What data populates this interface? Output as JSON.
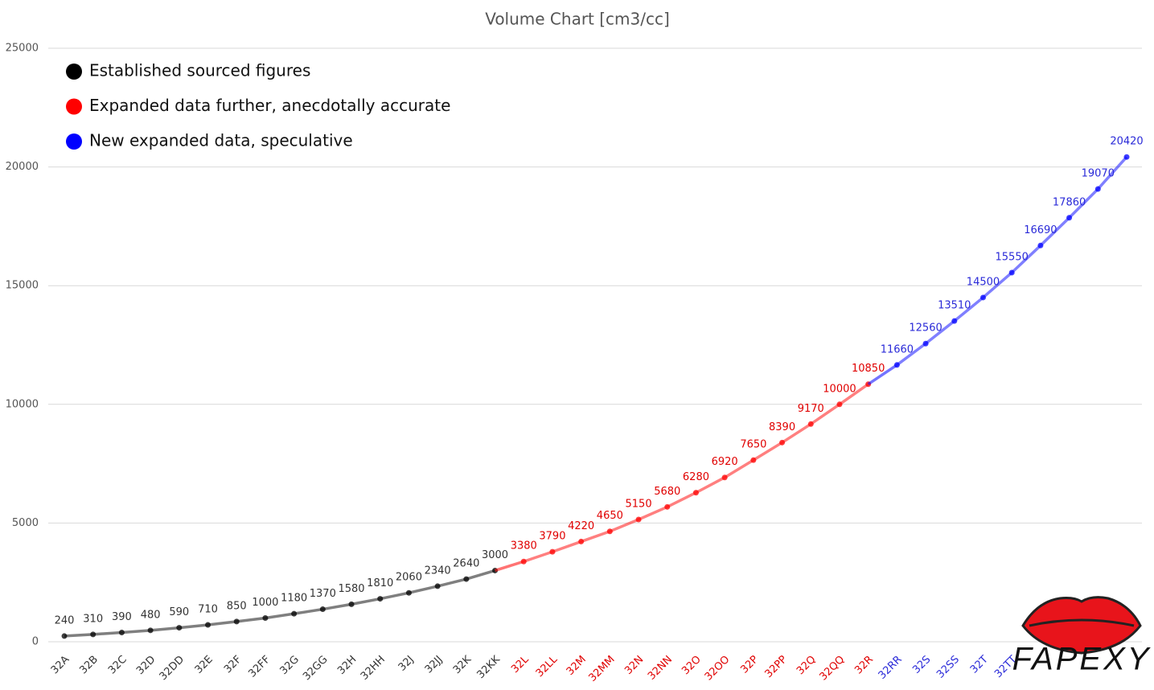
{
  "chart_data": {
    "type": "line",
    "title": "Volume Chart [cm3/cc]",
    "categories": [
      "32A",
      "32B",
      "32C",
      "32D",
      "32DD",
      "32E",
      "32F",
      "32FF",
      "32G",
      "32GG",
      "32H",
      "32HH",
      "32J",
      "32JJ",
      "32K",
      "32KK",
      "32L",
      "32LL",
      "32M",
      "32MM",
      "32N",
      "32NN",
      "32O",
      "32OO",
      "32P",
      "32PP",
      "32Q",
      "32QQ",
      "32R",
      "32RR",
      "32S",
      "32SS",
      "32T",
      "32TT",
      null,
      null,
      null,
      null
    ],
    "series": [
      {
        "name": "Established sourced figures",
        "color": "#000000",
        "values": [
          240,
          310,
          390,
          480,
          590,
          710,
          850,
          1000,
          1180,
          1370,
          1580,
          1810,
          2060,
          2340,
          2640,
          3000,
          null,
          null,
          null,
          null,
          null,
          null,
          null,
          null,
          null,
          null,
          null,
          null,
          null,
          null,
          null,
          null,
          null,
          null,
          null,
          null,
          null,
          null
        ]
      },
      {
        "name": "Expanded data further, anecdotally accurate",
        "color": "#ff0000",
        "values": [
          null,
          null,
          null,
          null,
          null,
          null,
          null,
          null,
          null,
          null,
          null,
          null,
          null,
          null,
          null,
          null,
          3380,
          3790,
          4220,
          4650,
          5150,
          5680,
          6280,
          6920,
          7650,
          8390,
          9170,
          10000,
          10850,
          null,
          null,
          null,
          null,
          null,
          null,
          null,
          null,
          null
        ]
      },
      {
        "name": "New expanded data, speculative",
        "color": "#0000ff",
        "values": [
          null,
          null,
          null,
          null,
          null,
          null,
          null,
          null,
          null,
          null,
          null,
          null,
          null,
          null,
          null,
          null,
          null,
          null,
          null,
          null,
          null,
          null,
          null,
          null,
          null,
          null,
          null,
          null,
          null,
          11660,
          12560,
          13510,
          14500,
          15550,
          16690,
          17860,
          19070,
          20420
        ]
      }
    ],
    "ylim": [
      0,
      25000
    ],
    "yticks": [
      0,
      5000,
      10000,
      15000,
      20000,
      25000
    ],
    "grid": true,
    "legend": "top-left"
  },
  "logo": "FAPEXY"
}
